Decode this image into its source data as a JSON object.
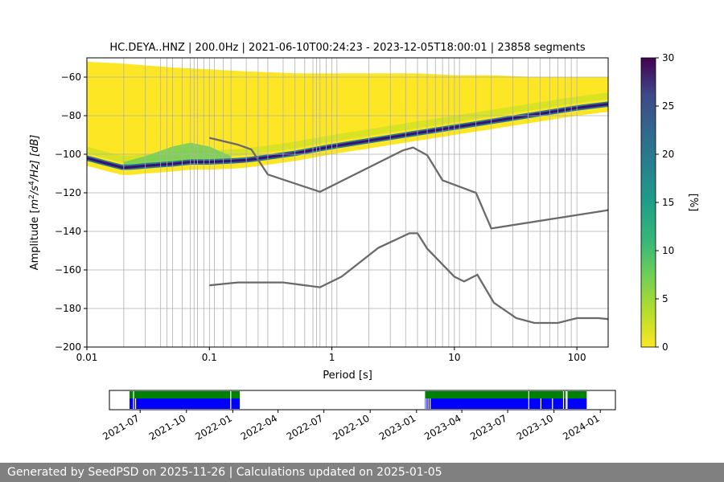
{
  "chart_data": [
    {
      "type": "heatmap",
      "title": "HC.DEYA..HNZ | 200.0Hz | 2021-06-10T00:24:23 - 2023-12-05T18:00:01 | 23858 segments",
      "xlabel": "Period [s]",
      "ylabel": "Amplitude [m²/s⁴/Hz] [dB]",
      "ylabel_parts": {
        "prefix": "Amplitude [",
        "m": "m",
        "exp2": "2",
        "s": "/s",
        "exp4": "4",
        "hz": "/Hz] [dB]"
      },
      "x_scale": "log",
      "xlim": [
        0.01,
        180
      ],
      "ylim": [
        -200,
        -50
      ],
      "grid": true,
      "x_ticks": [
        {
          "value": 0.01,
          "label": "0.01"
        },
        {
          "value": 0.1,
          "label": "0.1"
        },
        {
          "value": 1,
          "label": "1"
        },
        {
          "value": 10,
          "label": "10"
        },
        {
          "value": 100,
          "label": "100"
        }
      ],
      "y_ticks": [
        {
          "value": -60,
          "label": "−60"
        },
        {
          "value": -80,
          "label": "−80"
        },
        {
          "value": -100,
          "label": "−100"
        },
        {
          "value": -120,
          "label": "−120"
        },
        {
          "value": -140,
          "label": "−140"
        },
        {
          "value": -160,
          "label": "−160"
        },
        {
          "value": -180,
          "label": "−180"
        },
        {
          "value": -200,
          "label": "−200"
        }
      ],
      "period_bins": [
        0.02,
        0.03,
        0.04,
        0.045,
        0.05,
        0.06,
        0.07,
        0.075,
        0.08,
        0.09,
        0.11,
        0.13,
        0.15,
        0.2,
        0.25,
        0.3,
        0.4,
        0.5,
        0.6,
        0.7,
        0.75,
        0.8,
        0.9,
        1.1,
        2,
        3,
        4,
        5,
        6,
        7,
        8,
        9,
        11,
        15,
        20,
        30,
        40,
        50,
        60,
        70,
        80,
        90
      ],
      "mode_line": {
        "period": [
          0.01,
          0.015,
          0.02,
          0.03,
          0.05,
          0.07,
          0.1,
          0.15,
          0.2,
          0.3,
          0.5,
          1,
          2,
          5,
          10,
          20,
          50,
          100,
          180
        ],
        "db": [
          -102,
          -105,
          -107,
          -106,
          -105,
          -104,
          -104,
          -103.5,
          -103,
          -101.5,
          -99.5,
          -96,
          -93,
          -89,
          -86,
          -83,
          -79,
          -76,
          -74
        ]
      },
      "upper_band": {
        "period": [
          0.01,
          0.02,
          0.05,
          0.1,
          0.2,
          0.5,
          1,
          2,
          5,
          10,
          20,
          50,
          100,
          180
        ],
        "db": [
          -52,
          -53,
          -55,
          -56,
          -57,
          -58,
          -58,
          -58,
          -58,
          -59,
          -59,
          -60,
          -60,
          -60
        ]
      },
      "green_bump": {
        "period": [
          0.02,
          0.03,
          0.05,
          0.07,
          0.1,
          0.15
        ],
        "db": [
          -104,
          -101,
          -96,
          -94,
          -96,
          -101
        ]
      },
      "colormap": {
        "name": "viridis_r",
        "label": "[%]",
        "vmin": 0,
        "vmax": 30,
        "ticks": [
          0,
          5,
          10,
          15,
          20,
          25,
          30
        ]
      },
      "reference_lines": [
        {
          "name": "",
          "period": [
            0.1,
            0.17,
            0.22,
            0.3,
            0.8,
            3.8,
            4.6,
            6,
            8,
            15,
            20,
            180
          ],
          "db": [
            -91.5,
            -95,
            -97.5,
            -110.5,
            -119.5,
            -98,
            -96.5,
            -100.5,
            -113.5,
            -120,
            -138.5,
            -129
          ]
        },
        {
          "name": "",
          "period": [
            0.1,
            0.17,
            0.4,
            0.8,
            1.2,
            2.4,
            4.3,
            5,
            6,
            10,
            12,
            15.4,
            21,
            32,
            45,
            70,
            100,
            150,
            180
          ],
          "db": [
            -168,
            -166.5,
            -166.5,
            -169,
            -163.5,
            -148.5,
            -141,
            -141,
            -149,
            -163.5,
            -166,
            -162.5,
            -177,
            -185,
            -187.5,
            -187.5,
            -185,
            -185,
            -185.5
          ]
        }
      ]
    },
    {
      "type": "timeline",
      "x_start": "2021-05-01",
      "x_end": "2024-01-31",
      "x_ticks": [
        "2021-07",
        "2021-10",
        "2022-01",
        "2022-04",
        "2022-07",
        "2022-10",
        "2023-01",
        "2023-04",
        "2023-07",
        "2023-10",
        "2024-01"
      ],
      "tracks": [
        {
          "name": "",
          "color": "#008000",
          "intervals": [
            [
              "2021-06-10",
              "2022-01-15"
            ],
            [
              "2023-01-18",
              "2023-12-05"
            ]
          ],
          "gaps": [
            "2021-06-18",
            "2021-12-28",
            "2023-08-12",
            "2023-10-20",
            "2023-10-25",
            "2023-10-27"
          ]
        },
        {
          "name": "",
          "color": "#0000ff",
          "intervals": [
            [
              "2021-06-10",
              "2022-01-15"
            ],
            [
              "2023-01-18",
              "2023-12-05"
            ]
          ],
          "gaps": [
            "2021-06-18",
            "2021-06-22",
            "2021-12-28",
            "2023-01-20",
            "2023-01-24",
            "2023-01-28",
            "2023-08-12",
            "2023-09-05",
            "2023-09-28",
            "2023-10-20",
            "2023-10-25",
            "2023-10-27"
          ]
        }
      ]
    }
  ],
  "footer": "Generated by SeedPSD on 2025-11-26 | Calculations updated on 2025-01-05"
}
